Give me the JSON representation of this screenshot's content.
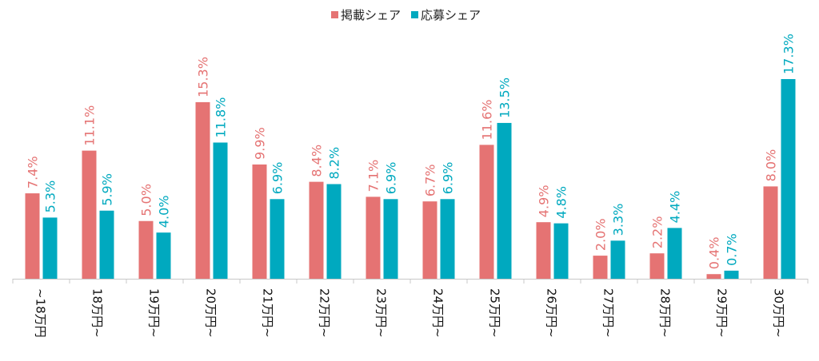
{
  "chart_data": {
    "type": "bar",
    "categories": [
      "~18万円",
      "18万円~",
      "19万円~",
      "20万円~",
      "21万円~",
      "22万円~",
      "23万円~",
      "24万円~",
      "25万円~",
      "26万円~",
      "27万円~",
      "28万円~",
      "29万円~",
      "30万円~"
    ],
    "series": [
      {
        "name": "掲載シェア",
        "color": "#E57373",
        "values": [
          7.4,
          11.1,
          5.0,
          15.3,
          9.9,
          8.4,
          7.1,
          6.7,
          11.6,
          4.9,
          2.0,
          2.2,
          0.4,
          8.0
        ],
        "labels": [
          "7.4%",
          "11.1%",
          "5.0%",
          "15.3%",
          "9.9%",
          "8.4%",
          "7.1%",
          "6.7%",
          "11.6%",
          "4.9%",
          "2.0%",
          "2.2%",
          "0.4%",
          "8.0%"
        ]
      },
      {
        "name": "応募シェア",
        "color": "#00A9BF",
        "values": [
          5.3,
          5.9,
          4.0,
          11.8,
          6.9,
          8.2,
          6.9,
          6.9,
          13.5,
          4.8,
          3.3,
          4.4,
          0.7,
          17.3
        ],
        "labels": [
          "5.3%",
          "5.9%",
          "4.0%",
          "11.8%",
          "6.9%",
          "8.2%",
          "6.9%",
          "6.9%",
          "13.5%",
          "4.8%",
          "3.3%",
          "4.4%",
          "0.7%",
          "17.3%"
        ]
      }
    ],
    "title": "",
    "xlabel": "",
    "ylabel": "",
    "ylim": [
      0,
      18
    ],
    "grid": false,
    "legend": "top-center"
  }
}
